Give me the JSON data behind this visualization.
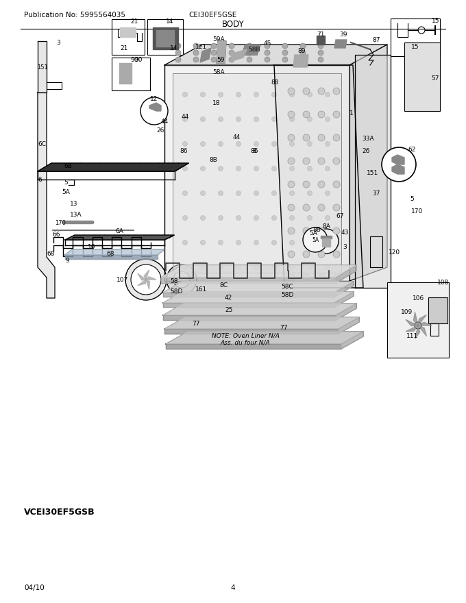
{
  "publication_no": "Publication No: 5995564035",
  "model": "CEI30EF5GSE",
  "section": "BODY",
  "date": "04/10",
  "page": "4",
  "variant": "VCEI30EF5GSB",
  "note_line1": "NOTE: Oven Liner N/A",
  "note_line2": "Ass. du four N/A",
  "bg_color": "#ffffff",
  "text_color": "#000000",
  "fig_width": 6.8,
  "fig_height": 8.8,
  "dpi": 100
}
